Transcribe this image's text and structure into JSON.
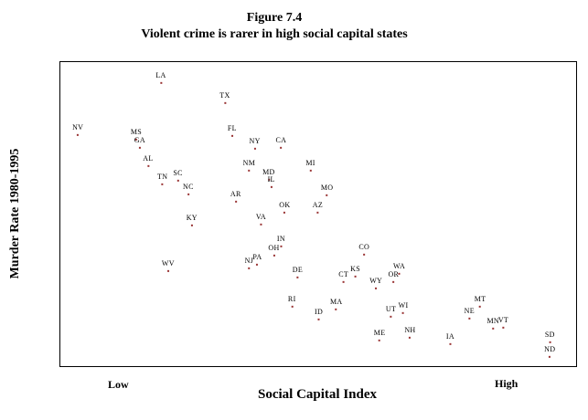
{
  "figure": {
    "title_line1": "Figure 7.4",
    "title_line2": "Violent crime is rarer in high social capital states",
    "y_axis_label": "Murder Rate 1980-1995",
    "x_axis_label": "Social Capital Index",
    "x_axis_low": "Low",
    "x_axis_high": "High"
  },
  "colors": {
    "point": "#993333",
    "text": "#000000",
    "border": "#000000"
  },
  "chart_data": {
    "type": "scatter",
    "title": "Figure 7.4",
    "subtitle": "Violent crime is rarer in high social capital states",
    "xlabel": "Social Capital Index",
    "ylabel": "Murder Rate 1980-1995",
    "x_axis_annotations": [
      "Low",
      "High"
    ],
    "axis_numeric_labels": false,
    "coords": "percent-of-plot-area; x: 0=Low(left) to 100=High(right); y: 0=top(high murder rate) to 100=bottom(low murder rate)",
    "points": [
      {
        "label": "LA",
        "x": 19.5,
        "y": 5.4
      },
      {
        "label": "TX",
        "x": 31.9,
        "y": 12.0
      },
      {
        "label": "NV",
        "x": 3.4,
        "y": 22.5
      },
      {
        "label": "MS",
        "x": 14.7,
        "y": 24.0
      },
      {
        "label": "GA",
        "x": 15.4,
        "y": 26.7
      },
      {
        "label": "FL",
        "x": 33.3,
        "y": 22.8
      },
      {
        "label": "NY",
        "x": 37.7,
        "y": 27.0
      },
      {
        "label": "CA",
        "x": 42.8,
        "y": 26.7
      },
      {
        "label": "AL",
        "x": 17.0,
        "y": 32.7
      },
      {
        "label": "NM",
        "x": 36.6,
        "y": 34.2
      },
      {
        "label": "MI",
        "x": 48.5,
        "y": 34.2
      },
      {
        "label": "TN",
        "x": 19.8,
        "y": 38.7
      },
      {
        "label": "SC",
        "x": 22.8,
        "y": 37.5
      },
      {
        "label": "MD",
        "x": 40.4,
        "y": 37.2
      },
      {
        "label": "IL",
        "x": 40.9,
        "y": 39.5
      },
      {
        "label": "NC",
        "x": 24.8,
        "y": 42.0
      },
      {
        "label": "AR",
        "x": 34.0,
        "y": 44.4
      },
      {
        "label": "MO",
        "x": 51.7,
        "y": 42.3
      },
      {
        "label": "OK",
        "x": 43.5,
        "y": 48.0
      },
      {
        "label": "AZ",
        "x": 49.9,
        "y": 48.0
      },
      {
        "label": "KY",
        "x": 25.5,
        "y": 52.3
      },
      {
        "label": "VA",
        "x": 38.9,
        "y": 52.0
      },
      {
        "label": "IN",
        "x": 42.8,
        "y": 59.2
      },
      {
        "label": "OH",
        "x": 41.4,
        "y": 62.2
      },
      {
        "label": "CO",
        "x": 58.9,
        "y": 61.9
      },
      {
        "label": "WV",
        "x": 20.9,
        "y": 67.3
      },
      {
        "label": "NJ",
        "x": 36.6,
        "y": 66.4
      },
      {
        "label": "PA",
        "x": 38.2,
        "y": 65.2
      },
      {
        "label": "DE",
        "x": 46.0,
        "y": 69.4
      },
      {
        "label": "KS",
        "x": 57.2,
        "y": 69.1
      },
      {
        "label": "CT",
        "x": 54.9,
        "y": 70.9
      },
      {
        "label": "WA",
        "x": 65.7,
        "y": 68.2
      },
      {
        "label": "WY",
        "x": 61.2,
        "y": 73.0
      },
      {
        "label": "OR",
        "x": 64.6,
        "y": 70.9
      },
      {
        "label": "RI",
        "x": 44.9,
        "y": 79.0
      },
      {
        "label": "MA",
        "x": 53.5,
        "y": 79.9
      },
      {
        "label": "ID",
        "x": 50.1,
        "y": 83.2
      },
      {
        "label": "UT",
        "x": 64.1,
        "y": 82.3
      },
      {
        "label": "WI",
        "x": 66.5,
        "y": 81.1
      },
      {
        "label": "MT",
        "x": 81.4,
        "y": 79.0
      },
      {
        "label": "NE",
        "x": 79.3,
        "y": 82.9
      },
      {
        "label": "MN",
        "x": 83.9,
        "y": 86.2
      },
      {
        "label": "VT",
        "x": 85.9,
        "y": 85.9
      },
      {
        "label": "ME",
        "x": 61.9,
        "y": 90.1
      },
      {
        "label": "NH",
        "x": 67.8,
        "y": 89.2
      },
      {
        "label": "IA",
        "x": 75.6,
        "y": 91.3
      },
      {
        "label": "SD",
        "x": 94.9,
        "y": 90.7
      },
      {
        "label": "ND",
        "x": 94.9,
        "y": 95.5
      }
    ]
  }
}
